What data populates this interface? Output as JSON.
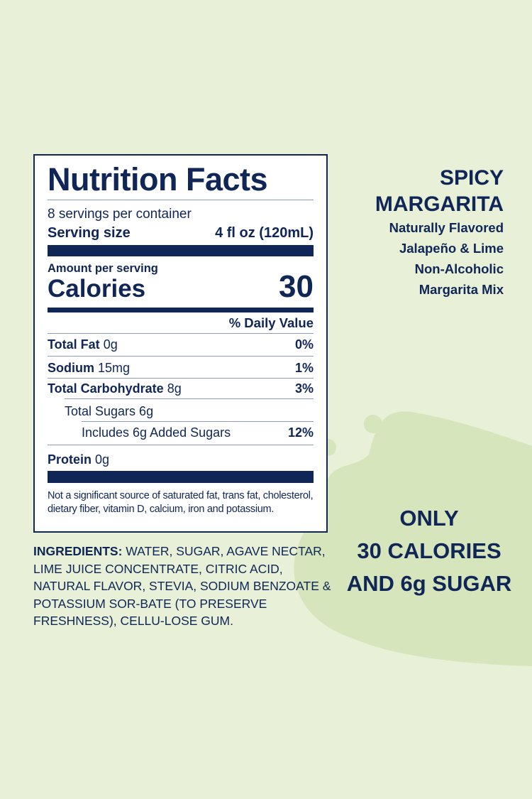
{
  "colors": {
    "background": "#e8f0d8",
    "blob": "#d6e5bb",
    "navy": "#0f2656"
  },
  "label": {
    "title": "Nutrition Facts",
    "servings": "8 servings per container",
    "serving_size_label": "Serving size",
    "serving_size_value": "4 fl oz (120mL)",
    "amount_per_serving": "Amount per serving",
    "calories_label": "Calories",
    "calories_value": "30",
    "daily_value_header": "% Daily Value",
    "rows": [
      {
        "name": "Total Fat",
        "amount": "0g",
        "dv": "0%"
      },
      {
        "name": "Sodium",
        "amount": "15mg",
        "dv": "1%"
      },
      {
        "name": "Total Carbohydrate",
        "amount": "8g",
        "dv": "3%"
      },
      {
        "name": "Total Sugars 6g",
        "amount": "",
        "dv": ""
      },
      {
        "name": "Includes 6g Added Sugars",
        "amount": "",
        "dv": "12%"
      },
      {
        "name": "Protein",
        "amount": "0g",
        "dv": ""
      }
    ],
    "footnote": "Not a significant source of saturated fat, trans fat, cholesterol, dietary fiber, vitamin D, calcium, iron and potassium."
  },
  "ingredients": {
    "label": "INGREDIENTS:",
    "text": " WATER, SUGAR, AGAVE NECTAR, LIME JUICE CONCENTRATE, CITRIC ACID, NATURAL FLAVOR, STEVIA, SODIUM BENZOATE & POTASSIUM SOR-BATE (TO PRESERVE FRESHNESS), CELLU-LOSE GUM."
  },
  "product": {
    "line1": "SPICY",
    "line2": "MARGARITA",
    "sub": [
      "Naturally Flavored",
      "Jalapeño & Lime",
      "Non-Alcoholic",
      "Margarita Mix"
    ]
  },
  "promo": [
    "ONLY",
    "30 CALORIES",
    "AND 6g SUGAR"
  ]
}
